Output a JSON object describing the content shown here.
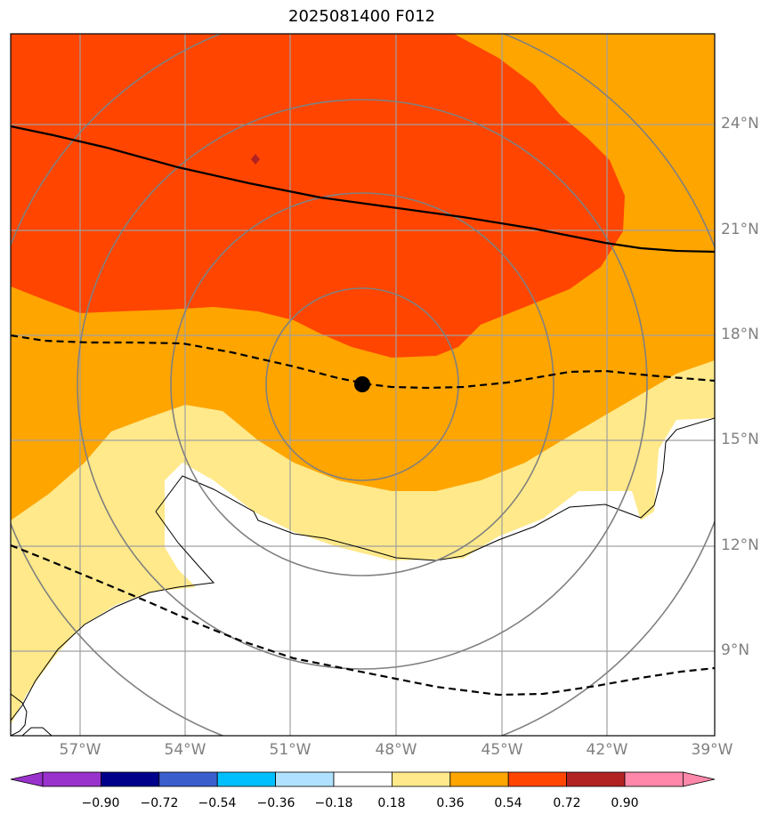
{
  "title": "2025081400 F012",
  "lat_labels": [
    "24°N",
    "21°N",
    "18°N",
    "15°N",
    "12°N",
    "9°N"
  ],
  "lon_labels": [
    "57°W",
    "54°W",
    "51°W",
    "48°W",
    "45°W",
    "42°W",
    "39°W"
  ],
  "colorbar": {
    "ticks": [
      "−0.90",
      "−0.72",
      "−0.54",
      "−0.36",
      "−0.18",
      "0.18",
      "0.36",
      "0.54",
      "0.72",
      "0.90"
    ],
    "colors": [
      "#9932cc",
      "#00008b",
      "#3a5fcd",
      "#00bfff",
      "#b0e2ff",
      "#ffffff",
      "#ffe98a",
      "#ffa500",
      "#ff4500",
      "#b22222",
      "#ff88aa"
    ]
  },
  "map": {
    "fill_colors": {
      "band_036_054": "#ffa500",
      "band_054_072": "#ff4500",
      "band_018_036": "#ffe98a",
      "band_072_090": "#b22222"
    },
    "center_marker": "black dot"
  }
}
